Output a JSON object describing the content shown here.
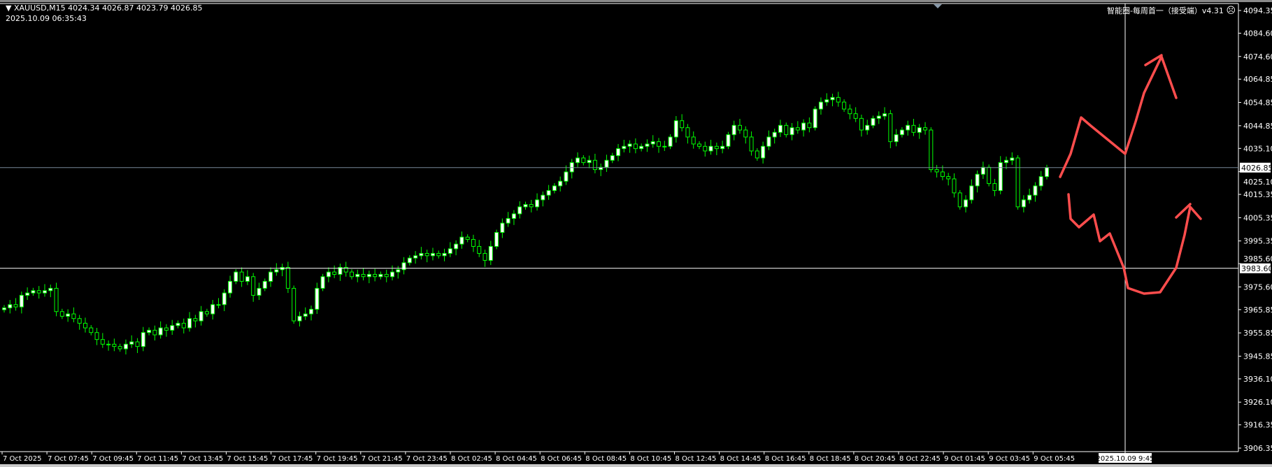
{
  "header": {
    "symbol": "XAUUSD,M15",
    "ohlc": "4024.34 4026.87 4023.79 4026.85",
    "symbol_line": "XAUUSD,M15  4024.34 4026.87 4023.79 4026.85",
    "server_time": "2025.10.09 06:35:43",
    "indicator_label": "智能圈-每周首一（接受端）v4.31",
    "indicator_icon": "sad-face-icon"
  },
  "colors": {
    "background": "#000000",
    "candle_outline": "#00ff00",
    "bull_body": "#ffffff",
    "bear_body": "#000000",
    "bid_line": "#778899",
    "crosshair": "#ffffff",
    "annotation": "#ff4d4d"
  },
  "chart_data": {
    "type": "candlestick",
    "symbol": "XAUUSD",
    "timeframe": "M15",
    "ylim": [
      3906.35,
      4094.35
    ],
    "y_ticks": [
      "4094.35",
      "4084.60",
      "4074.60",
      "4064.85",
      "4054.85",
      "4044.85",
      "4035.10",
      "4025.10",
      "4015.35",
      "4005.35",
      "3995.35",
      "3985.60",
      "3975.60",
      "3965.85",
      "3955.85",
      "3945.85",
      "3936.10",
      "3926.10",
      "3916.35",
      "3906.35"
    ],
    "x_ticks": [
      "7 Oct 2025",
      "7 Oct 07:45",
      "7 Oct 09:45",
      "7 Oct 11:45",
      "7 Oct 13:45",
      "7 Oct 15:45",
      "7 Oct 17:45",
      "7 Oct 19:45",
      "7 Oct 21:45",
      "7 Oct 23:45",
      "8 Oct 02:45",
      "8 Oct 04:45",
      "8 Oct 06:45",
      "8 Oct 08:45",
      "8 Oct 10:45",
      "8 Oct 12:45",
      "8 Oct 14:45",
      "8 Oct 16:45",
      "8 Oct 18:45",
      "8 Oct 20:45",
      "8 Oct 22:45",
      "9 Oct 01:45",
      "9 Oct 03:45",
      "9 Oct 05:45"
    ],
    "closes": [
      3966.6,
      3968,
      3967,
      3972,
      3973,
      3974,
      3973,
      3974,
      3975,
      3965,
      3963,
      3964,
      3962,
      3960,
      3958,
      3956,
      3953,
      3951,
      3951,
      3950,
      3949,
      3951,
      3952,
      3950,
      3956,
      3957,
      3955,
      3958,
      3957,
      3959,
      3960,
      3958,
      3962,
      3961,
      3965,
      3964,
      3968,
      3968,
      3973,
      3978,
      3982,
      3978,
      3980,
      3972,
      3975,
      3978,
      3982,
      3983,
      3984,
      3975,
      3961,
      3963,
      3964,
      3966,
      3975,
      3980,
      3982,
      3981,
      3984,
      3982,
      3980,
      3981,
      3980,
      3981,
      3980,
      3981,
      3980,
      3982,
      3983,
      3986,
      3988,
      3989,
      3990,
      3989,
      3990,
      3989,
      3990,
      3992,
      3994,
      3997,
      3996,
      3993,
      3990,
      3987,
      3993,
      3999,
      4003,
      4005,
      4007,
      4010,
      4011,
      4010,
      4013,
      4015,
      4017,
      4019,
      4021,
      4025,
      4029,
      4031,
      4029,
      4030,
      4026,
      4027,
      4030,
      4032,
      4035,
      4036,
      4037,
      4035,
      4036,
      4037,
      4038,
      4036,
      4036,
      4040,
      4047,
      4044,
      4040,
      4037,
      4036,
      4034,
      4036,
      4035,
      4036,
      4041,
      4045,
      4043,
      4040,
      4034,
      4031,
      4036,
      4040,
      4042,
      4045,
      4041,
      4044,
      4043,
      4046,
      4044,
      4052,
      4055,
      4056,
      4057,
      4055,
      4052,
      4050,
      4048,
      4043,
      4045,
      4048,
      4049,
      4050,
      4038,
      4041,
      4043,
      4045,
      4042,
      4044,
      4043,
      4026,
      4025,
      4023,
      4022,
      4016,
      4010,
      4013,
      4019,
      4024,
      4027,
      4020,
      4017,
      4029,
      4030,
      4031,
      4010,
      4013,
      4015,
      4019,
      4023,
      4026.85
    ],
    "bid_price": "4026.85",
    "crosshair_price": "3983.60",
    "crosshair_time": "2025.10.09 9:45",
    "grid": false
  }
}
